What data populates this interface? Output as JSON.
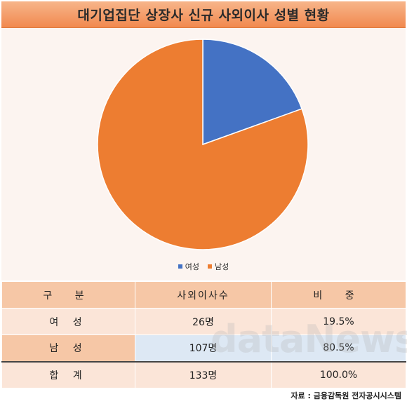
{
  "title": "대기업집단 상장사 신규 사외이사 성별 현황",
  "colors": {
    "female": "#4472c4",
    "male": "#ed7d31"
  },
  "chart_data": {
    "type": "pie",
    "categories": [
      "여성",
      "남성"
    ],
    "values": [
      19.5,
      80.5
    ],
    "legend_position": "bottom"
  },
  "table": {
    "headers": [
      "구 분",
      "사외이사수",
      "비 중"
    ],
    "rows": [
      {
        "label": "여 성",
        "count": "26명",
        "share": "19.5%"
      },
      {
        "label": "남 성",
        "count": "107명",
        "share": "80.5%"
      },
      {
        "label": "합 계",
        "count": "133명",
        "share": "100.0%"
      }
    ]
  },
  "watermark": "dataNews",
  "source": "자료 : 금융감독원 전자공시시스템"
}
